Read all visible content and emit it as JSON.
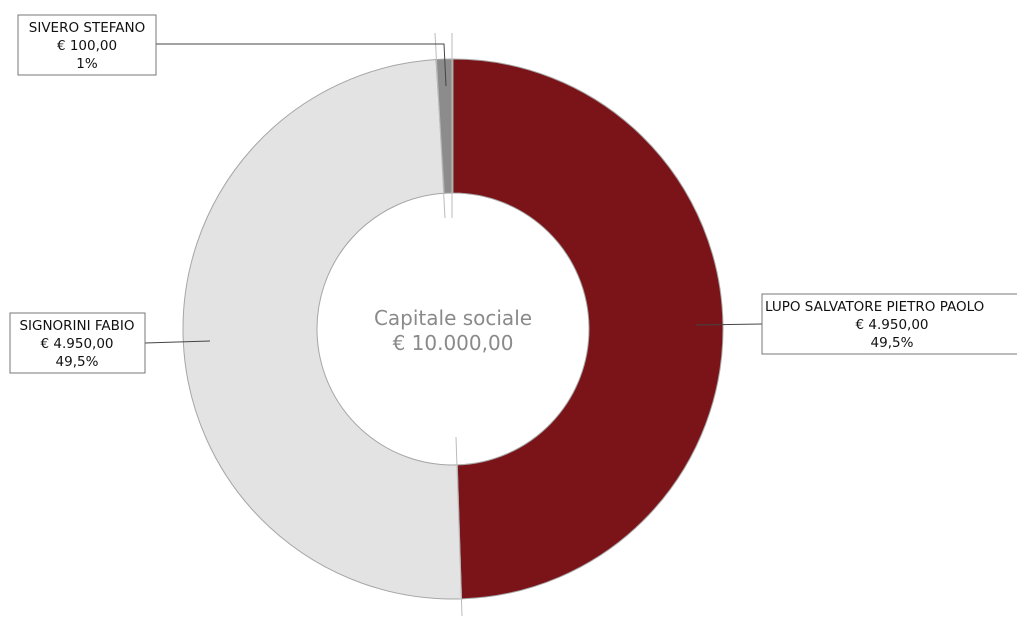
{
  "chart_data": {
    "type": "pie",
    "donut": true,
    "center": {
      "title": "Capitale sociale",
      "value": "€ 10.000,00"
    },
    "slices": [
      {
        "name": "LUPO SALVATORE PIETRO PAOLO",
        "value": 4950,
        "value_label": "€ 4.950,00",
        "percent_label": "49,5%",
        "color": "#7b1418"
      },
      {
        "name": "SIGNORINI FABIO",
        "value": 4950,
        "value_label": "€ 4.950,00",
        "percent_label": "49,5%",
        "color": "#e3e3e3"
      },
      {
        "name": "SIVERO STEFANO",
        "value": 100,
        "value_label": "€ 100,00",
        "percent_label": "1%",
        "color": "#8c8c8c"
      }
    ]
  }
}
